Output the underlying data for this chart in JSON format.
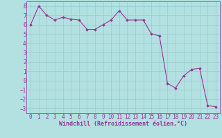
{
  "x": [
    0,
    1,
    2,
    3,
    4,
    5,
    6,
    7,
    8,
    9,
    10,
    11,
    12,
    13,
    14,
    15,
    16,
    17,
    18,
    19,
    20,
    21,
    22,
    23
  ],
  "y": [
    6.0,
    8.0,
    7.0,
    6.5,
    6.8,
    6.6,
    6.5,
    5.5,
    5.5,
    6.0,
    6.5,
    7.5,
    6.5,
    6.5,
    6.5,
    5.0,
    4.8,
    -0.3,
    -0.8,
    0.5,
    1.2,
    1.3,
    -2.7,
    -2.8
  ],
  "line_color": "#993399",
  "marker": "D",
  "markersize": 1.8,
  "linewidth": 0.8,
  "xlabel": "Windchill (Refroidissement éolien,°C)",
  "xlabel_fontsize": 6.0,
  "xlim": [
    -0.5,
    23.5
  ],
  "ylim": [
    -3.5,
    8.5
  ],
  "yticks": [
    -3,
    -2,
    -1,
    0,
    1,
    2,
    3,
    4,
    5,
    6,
    7,
    8
  ],
  "xticks": [
    0,
    1,
    2,
    3,
    4,
    5,
    6,
    7,
    8,
    9,
    10,
    11,
    12,
    13,
    14,
    15,
    16,
    17,
    18,
    19,
    20,
    21,
    22,
    23
  ],
  "grid_color": "#99cccc",
  "background_color": "#b3e0e0",
  "tick_fontsize": 5.5,
  "tick_color": "#993399",
  "label_color": "#993399",
  "spine_color": "#993399"
}
